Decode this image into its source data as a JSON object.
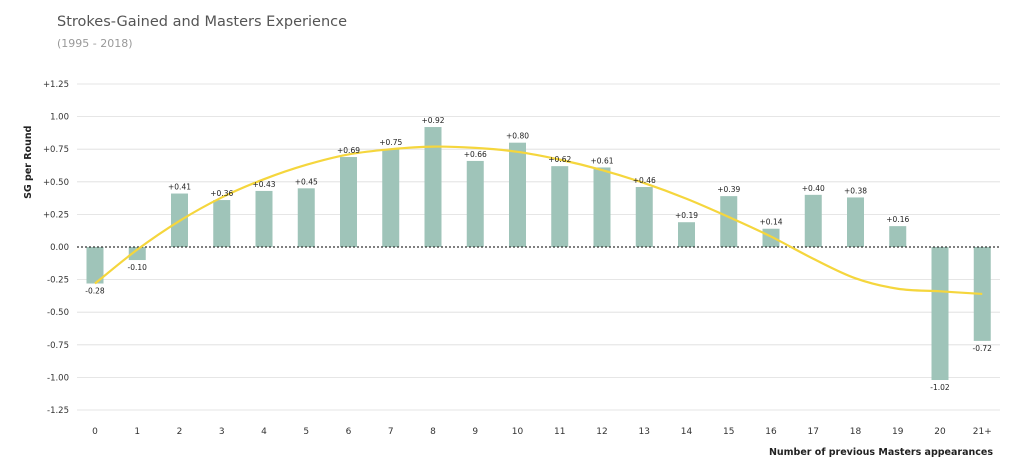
{
  "header": {
    "title": "Strokes-Gained and Masters Experience",
    "subtitle": "(1995 - 2018)"
  },
  "chart_data": {
    "type": "bar",
    "title": "Strokes-Gained and Masters Experience",
    "subtitle": "(1995 - 2018)",
    "xlabel": "Number of previous Masters appearances",
    "ylabel": "SG per Round",
    "categories": [
      "0",
      "1",
      "2",
      "3",
      "4",
      "5",
      "6",
      "7",
      "8",
      "9",
      "10",
      "11",
      "12",
      "13",
      "14",
      "15",
      "16",
      "17",
      "18",
      "19",
      "20",
      "21+"
    ],
    "values": [
      -0.28,
      -0.1,
      0.41,
      0.36,
      0.43,
      0.45,
      0.69,
      0.75,
      0.92,
      0.66,
      0.8,
      0.62,
      0.61,
      0.46,
      0.19,
      0.39,
      0.14,
      0.4,
      0.38,
      0.16,
      -1.02,
      -0.72
    ],
    "labels": [
      "-0.28",
      "-0.10",
      "+0.41",
      "+0.36",
      "+0.43",
      "+0.45",
      "+0.69",
      "+0.75",
      "+0.92",
      "+0.66",
      "+0.80",
      "+0.62",
      "+0.61",
      "+0.46",
      "+0.19",
      "+0.39",
      "+0.14",
      "+0.40",
      "+0.38",
      "+0.16",
      "-1.02",
      "-0.72"
    ],
    "ylim": [
      -1.25,
      1.25
    ],
    "yticks": [
      1.25,
      1.0,
      0.75,
      0.5,
      0.25,
      0.0,
      -0.25,
      -0.5,
      -0.75,
      -1.0,
      -1.25
    ],
    "ytick_labels": [
      "+1.25",
      "1.00",
      "+0.75",
      "+0.50",
      "+0.25",
      "0.00",
      "-0.25",
      "-0.50",
      "-0.75",
      "-1.00",
      "-1.25"
    ],
    "trendline": {
      "x": [
        0,
        1,
        2,
        3,
        4,
        5,
        6,
        7,
        8,
        9,
        10,
        11,
        12,
        13,
        14,
        15,
        16,
        17,
        18,
        19,
        20,
        21
      ],
      "y": [
        -0.28,
        -0.02,
        0.2,
        0.38,
        0.52,
        0.63,
        0.71,
        0.75,
        0.77,
        0.76,
        0.73,
        0.67,
        0.59,
        0.49,
        0.37,
        0.23,
        0.08,
        -0.09,
        -0.24,
        -0.32,
        -0.34,
        -0.36
      ]
    },
    "grid": true,
    "legend": "none",
    "colors": {
      "bar": "#9fc4b9",
      "trend": "#f5d63d",
      "grid": "#dddddd",
      "zero": "#333333"
    }
  }
}
